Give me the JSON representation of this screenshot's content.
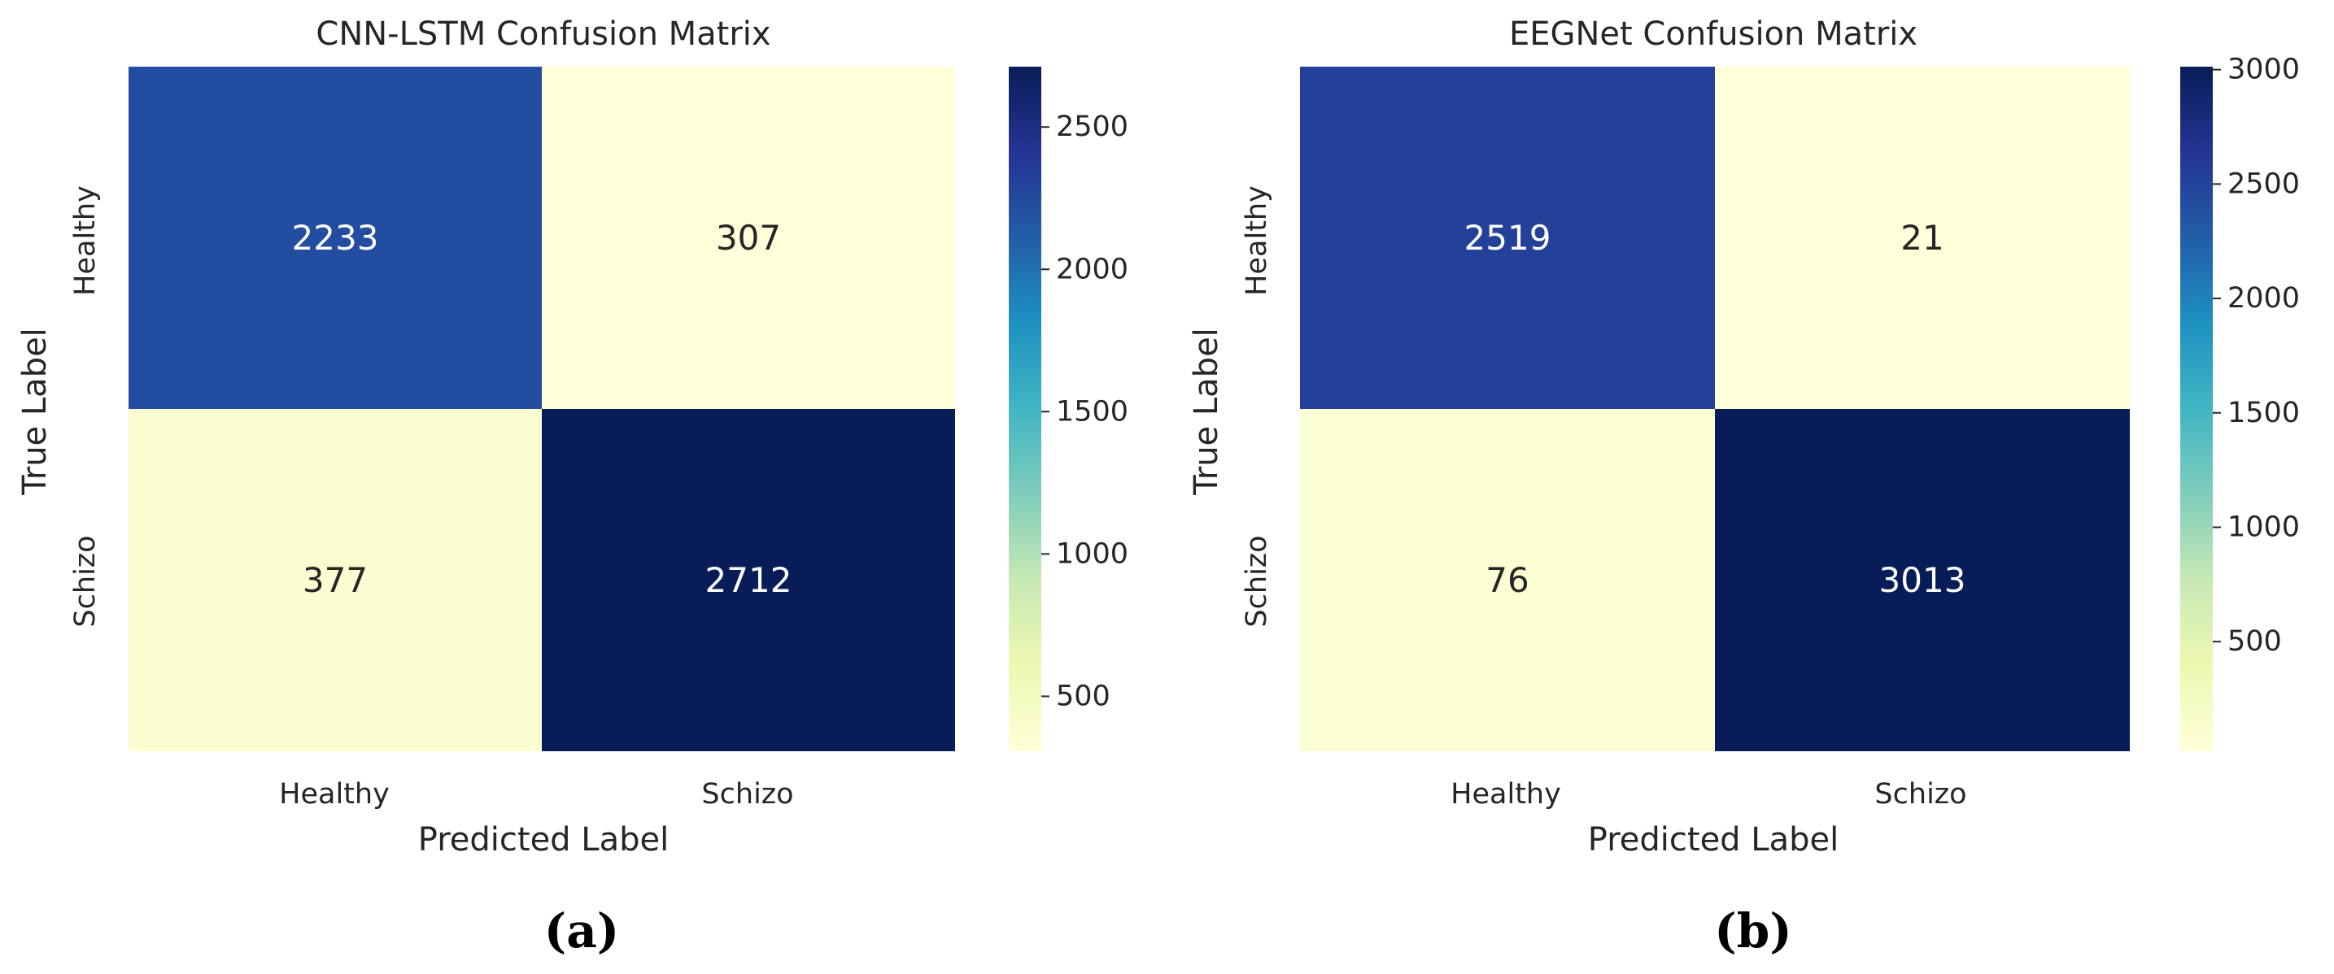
{
  "colormap": {
    "name": "YlGnBu",
    "stops": [
      "#ffffd9",
      "#edf8b1",
      "#c7e9b4",
      "#7fcdbb",
      "#41b6c4",
      "#1d91c0",
      "#225ea8",
      "#253494",
      "#081d58"
    ]
  },
  "annotation_colors": {
    "light_text": "#ffffff",
    "dark_text": "#262626"
  },
  "chart_data": [
    {
      "type": "heatmap",
      "title": "CNN-LSTM Confusion Matrix",
      "xlabel": "Predicted Label",
      "ylabel": "True Label",
      "row_labels": [
        "Healthy",
        "Schizo"
      ],
      "col_labels": [
        "Healthy",
        "Schizo"
      ],
      "values": [
        [
          2233,
          307
        ],
        [
          377,
          2712
        ]
      ],
      "vmin": 307,
      "vmax": 2712,
      "colorbar_ticks": [
        500,
        1000,
        1500,
        2000,
        2500
      ],
      "caption": "(a)"
    },
    {
      "type": "heatmap",
      "title": "EEGNet Confusion Matrix",
      "xlabel": "Predicted Label",
      "ylabel": "True Label",
      "row_labels": [
        "Healthy",
        "Schizo"
      ],
      "col_labels": [
        "Healthy",
        "Schizo"
      ],
      "values": [
        [
          2519,
          21
        ],
        [
          76,
          3013
        ]
      ],
      "vmin": 21,
      "vmax": 3013,
      "colorbar_ticks": [
        500,
        1000,
        1500,
        2000,
        2500,
        3000
      ],
      "caption": "(b)"
    }
  ]
}
